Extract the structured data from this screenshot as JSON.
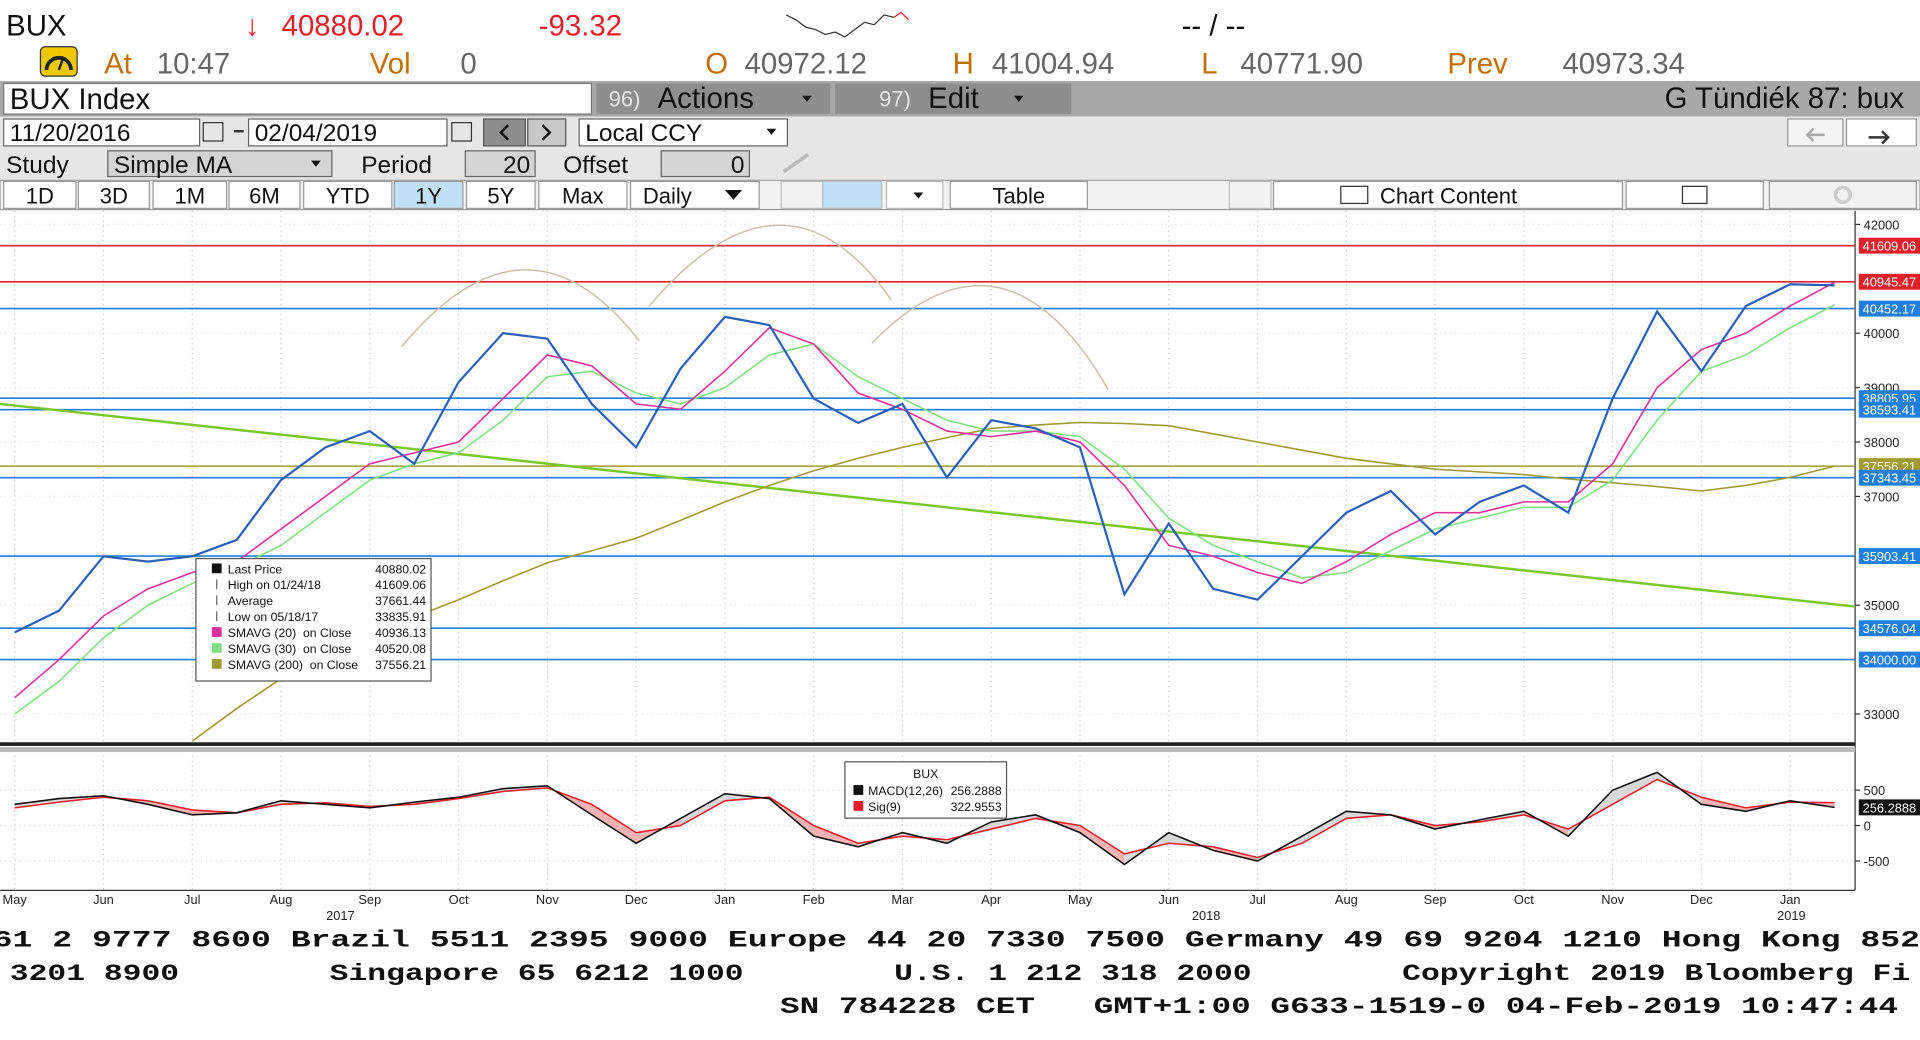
{
  "header": {
    "ticker": "BUX",
    "arrow": "↓",
    "last": "40880.02",
    "change": "-93.32",
    "bidask": "-- / --",
    "time_label": "At",
    "time": "10:47",
    "vol_label": "Vol",
    "vol": "0",
    "open_label": "O",
    "open": "40972.12",
    "high_label": "H",
    "high": "41004.94",
    "low_label": "L",
    "low": "40771.90",
    "prev_label": "Prev",
    "prev": "40973.34"
  },
  "toolbar": {
    "security": "BUX Index",
    "actions_num": "96)",
    "actions": "Actions",
    "edit_num": "97)",
    "edit": "Edit",
    "user": "G Tündiék 87: bux",
    "start_date": "11/20/2016",
    "end_date": "02/04/2019",
    "ccy": "Local CCY",
    "study_label": "Study",
    "study": "Simple MA",
    "period_label": "Period",
    "period": "20",
    "offset_label": "Offset",
    "offset": "0",
    "ranges": [
      "1D",
      "3D",
      "1M",
      "6M",
      "YTD",
      "1Y",
      "5Y",
      "Max"
    ],
    "active_range_index": 5,
    "frequency": "Daily",
    "table": "Table",
    "chart_content": "Chart Content"
  },
  "chart_data": [
    {
      "type": "line",
      "categories": [
        "May",
        null,
        "Jun",
        null,
        "Jul",
        null,
        "Aug",
        null,
        "Sep",
        null,
        "Oct",
        null,
        "Nov",
        null,
        "Dec",
        null,
        "Jan",
        null,
        "Feb",
        null,
        "Mar",
        null,
        "Apr",
        null,
        "May",
        null,
        "Jun",
        null,
        "Jul",
        null,
        "Aug",
        null,
        "Sep",
        null,
        "Oct",
        null,
        "Nov",
        null,
        "Dec",
        null,
        "Jan",
        null
      ],
      "years": [
        "2017",
        "2018",
        "2019"
      ],
      "series": [
        {
          "name": "Last Price",
          "color": "#2b5fb8",
          "values": [
            34500,
            34900,
            35900,
            35800,
            35900,
            36200,
            37300,
            37900,
            38200,
            37600,
            39100,
            40000,
            39900,
            38700,
            37900,
            39350,
            40300,
            40150,
            38800,
            38350,
            38700,
            37350,
            38400,
            38250,
            37900,
            35200,
            36500,
            35300,
            35100,
            35900,
            36700,
            37100,
            36300,
            36900,
            37200,
            36700,
            38800,
            40400,
            39300,
            40500,
            40900,
            40880.02
          ]
        },
        {
          "name": "SMAVG (20)  on Close",
          "color": "#e0309a",
          "values": [
            33300,
            34000,
            34800,
            35300,
            35600,
            35800,
            36400,
            37000,
            37600,
            37800,
            38000,
            38800,
            39600,
            39400,
            38700,
            38600,
            39300,
            40100,
            39800,
            38900,
            38600,
            38200,
            38100,
            38200,
            38000,
            37200,
            36100,
            35900,
            35600,
            35400,
            35800,
            36300,
            36700,
            36700,
            36900,
            36900,
            37600,
            39000,
            39700,
            40000,
            40500,
            40936.13
          ]
        },
        {
          "name": "SMAVG (30)  on Close",
          "color": "#7fe07f",
          "values": [
            33000,
            33600,
            34400,
            35000,
            35400,
            35700,
            36100,
            36700,
            37300,
            37600,
            37800,
            38400,
            39200,
            39300,
            38900,
            38700,
            39000,
            39600,
            39800,
            39200,
            38800,
            38400,
            38200,
            38200,
            38100,
            37500,
            36600,
            36100,
            35800,
            35500,
            35600,
            36000,
            36400,
            36600,
            36800,
            36800,
            37300,
            38400,
            39300,
            39600,
            40100,
            40520.08
          ]
        },
        {
          "name": "SMAVG (200)  on Close",
          "color": "#a09a30",
          "values": [
            null,
            null,
            null,
            null,
            32500,
            33100,
            33650,
            34050,
            34430,
            34780,
            35100,
            35450,
            35780,
            36000,
            36230,
            36560,
            36900,
            37200,
            37470,
            37700,
            37900,
            38080,
            38250,
            38310,
            38360,
            38340,
            38300,
            38150,
            38000,
            37850,
            37700,
            37600,
            37500,
            37450,
            37400,
            37320,
            37250,
            37180,
            37100,
            37200,
            37350,
            37556.21
          ]
        }
      ],
      "stats": [
        {
          "name": "High on 01/24/18",
          "value": "41609.06"
        },
        {
          "name": "Average",
          "value": "37661.44"
        },
        {
          "name": "Low on 05/18/17",
          "value": "33835.91"
        }
      ],
      "levels": [
        {
          "value": 41609.06,
          "label": "41609.06",
          "color": "#e3202a"
        },
        {
          "value": 40945.47,
          "label": "40945.47",
          "color": "#e3202a"
        },
        {
          "value": 40452.17,
          "label": "40452.17",
          "color": "#1f7fe0"
        },
        {
          "value": 38805.95,
          "label": "38805.95",
          "color": "#1f7fe0"
        },
        {
          "value": 38593.41,
          "label": "38593.41",
          "color": "#1f7fe0"
        },
        {
          "value": 37556.21,
          "label": "37556.21",
          "color": "#a09a30"
        },
        {
          "value": 37343.45,
          "label": "37343.45",
          "color": "#1f7fe0"
        },
        {
          "value": 35903.41,
          "label": "35903.41",
          "color": "#1f7fe0"
        },
        {
          "value": 34576.04,
          "label": "34576.04",
          "color": "#1f7fe0"
        },
        {
          "value": 34000,
          "label": "34000.00",
          "color": "#1f7fe0"
        }
      ],
      "trendline": {
        "color": "#78c82a",
        "values": [
          38700,
          34975
        ]
      },
      "ylim": [
        32480,
        42250
      ],
      "yticks": [
        33000,
        35000,
        37000,
        38000,
        39000,
        40000,
        42000
      ],
      "grid": true
    },
    {
      "type": "line",
      "title": "BUX",
      "series": [
        {
          "name": "MACD(12,26)",
          "color": "#111111",
          "values": [
            300,
            380,
            420,
            300,
            150,
            180,
            350,
            300,
            250,
            330,
            400,
            520,
            560,
            150,
            -250,
            100,
            450,
            380,
            -150,
            -300,
            -100,
            -250,
            50,
            150,
            -100,
            -550,
            -100,
            -350,
            -500,
            -150,
            200,
            150,
            -50,
            80,
            200,
            -150,
            500,
            750,
            300,
            200,
            350,
            256.2888
          ]
        },
        {
          "name": "Sig(9)",
          "color": "#e3202a",
          "values": [
            250,
            330,
            400,
            350,
            220,
            180,
            300,
            320,
            270,
            300,
            380,
            480,
            530,
            300,
            -100,
            0,
            350,
            400,
            0,
            -250,
            -150,
            -200,
            -50,
            100,
            0,
            -400,
            -250,
            -300,
            -450,
            -250,
            100,
            150,
            0,
            50,
            150,
            -50,
            300,
            650,
            400,
            250,
            330,
            322.9553
          ]
        }
      ],
      "ylim": [
        -915,
        985
      ],
      "yticks": [
        500,
        0,
        -500
      ],
      "grid": true
    }
  ],
  "footer": {
    "lines": [
      "61 2 9777 8600 Brazil 5511 2395 9000 Europe 44 20 7330 7500 Germany 49 69 9204 1210 Hong Kong 852",
      "3201 8900        Singapore 65 6212 1000        U.S. 1 212 318 2000        Copyright 2019 Bloomberg Fi",
      "SN 784228 CET   GMT+1:00 G633-1519-0 04-Feb-2019 10:47:44"
    ]
  }
}
